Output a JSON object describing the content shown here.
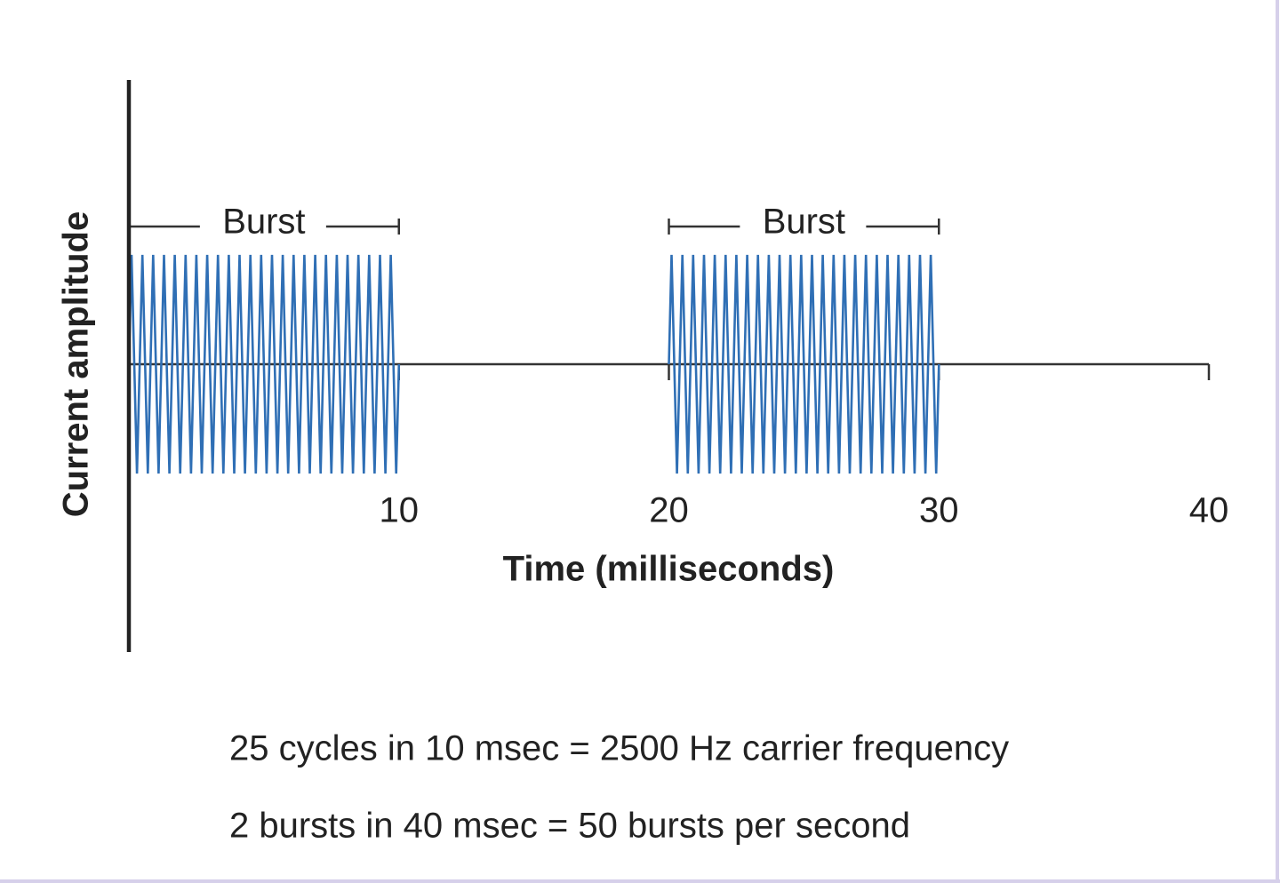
{
  "chart_data": {
    "type": "burst",
    "x_label": "Time (milliseconds)",
    "y_label": "Current amplitude",
    "xlim": [
      0,
      40
    ],
    "xticks": [
      10,
      20,
      30,
      40
    ],
    "ylim": [
      -2.6,
      2.6
    ],
    "color": "#2f6fb5",
    "bursts": [
      {
        "label": "Burst",
        "start": 0,
        "end": 10,
        "cycles": 25,
        "amplitude": 1
      },
      {
        "label": "Burst",
        "start": 20,
        "end": 30,
        "cycles": 25,
        "amplitude": 1
      }
    ],
    "annotations": [
      "25 cycles in 10 msec = 2500 Hz carrier frequency",
      "2 bursts in 40 msec = 50 bursts per second"
    ]
  }
}
